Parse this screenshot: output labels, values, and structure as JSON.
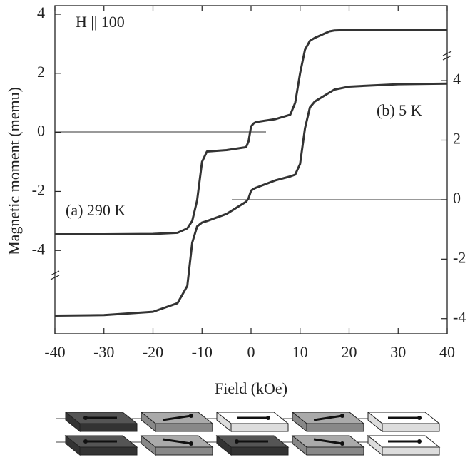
{
  "chart_data": {
    "type": "line",
    "xlabel": "Field (kOe)",
    "ylabel": "Magnetic moment (memu)",
    "annotations": [
      "H || 100",
      "(a) 290 K",
      "(b) 5 K"
    ],
    "x": [
      -40,
      -30,
      -20,
      -15,
      -13,
      -12,
      -11,
      -10,
      -9,
      -5,
      -1,
      -0.5,
      0,
      0.5,
      1,
      5,
      8,
      9,
      10,
      11,
      12,
      13,
      16,
      17,
      20,
      30,
      40
    ],
    "series": [
      {
        "name": "(a) 290 K",
        "color": "#333333",
        "axis": "y",
        "values": [
          -3.45,
          -3.45,
          -3.44,
          -3.4,
          -3.25,
          -3.0,
          -2.3,
          -1.0,
          -0.65,
          -0.6,
          -0.5,
          -0.3,
          0.2,
          0.3,
          0.35,
          0.45,
          0.6,
          1.0,
          2.0,
          2.8,
          3.1,
          3.2,
          3.42,
          3.45,
          3.47,
          3.48,
          3.48
        ]
      },
      {
        "name": "(b) 5 K",
        "color": "#333333",
        "axis": "y2",
        "values": [
          -3.9,
          -3.88,
          -3.77,
          -3.48,
          -2.9,
          -1.45,
          -0.9,
          -0.77,
          -0.72,
          -0.48,
          -0.07,
          0.05,
          0.3,
          0.36,
          0.4,
          0.65,
          0.78,
          0.84,
          1.2,
          2.4,
          3.1,
          3.3,
          3.6,
          3.7,
          3.8,
          3.88,
          3.9
        ]
      }
    ],
    "xlim": [
      -40,
      40
    ],
    "xticks": [
      -40,
      -30,
      -20,
      -10,
      0,
      10,
      20,
      30,
      40
    ],
    "ylim": [
      -6.82,
      4.29
    ],
    "yticks": [
      -4,
      -2,
      0,
      2,
      4
    ],
    "y2lim": [
      -4.51,
      6.52
    ],
    "y2ticks": [
      -4,
      -2,
      0,
      2,
      4
    ]
  }
}
